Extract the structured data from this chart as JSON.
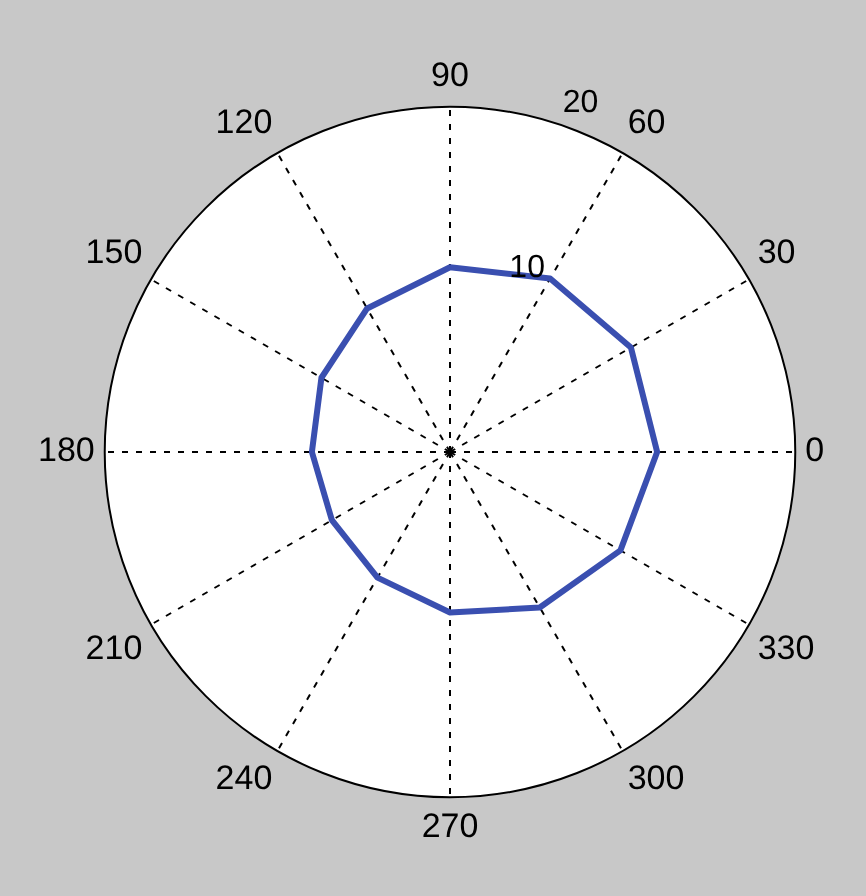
{
  "chart_data": {
    "type": "radar",
    "categories": [
      "90",
      "60",
      "30",
      "0",
      "330",
      "300",
      "270",
      "240",
      "210",
      "180",
      "150",
      "120"
    ],
    "series": [
      {
        "color": "#3a4fb0",
        "values": [
          10.7,
          11.6,
          12.1,
          12,
          11.4,
          10.4,
          9.3,
          8.4,
          7.9,
          8,
          8.6,
          9.6
        ]
      }
    ],
    "ylim": [
      0,
      20
    ],
    "yticks": [
      10,
      20
    ],
    "grid": true,
    "legend": false
  }
}
